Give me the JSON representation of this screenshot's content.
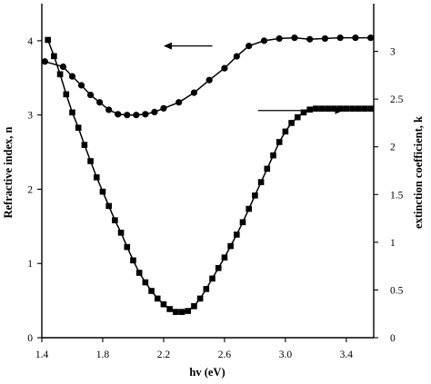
{
  "chart_data": {
    "type": "line",
    "title": "",
    "xlabel": "hv (eV)",
    "ylabel_left": "Refractive index, n",
    "ylabel_right": "extinction coefficient, k",
    "xlim": [
      1.4,
      3.58
    ],
    "ylim_left": [
      0,
      4.5
    ],
    "ylim_right": [
      0,
      3.5
    ],
    "x_ticks": [
      "1.4",
      "1.8",
      "2.2",
      "2.6",
      "3.0",
      "3.4"
    ],
    "y_left_ticks": [
      "0",
      "1",
      "2",
      "3",
      "4"
    ],
    "y_right_ticks": [
      "0",
      "0.5",
      "1",
      "1.5",
      "2",
      "2.5",
      "3"
    ],
    "grid": false,
    "legend": "none",
    "series": [
      {
        "marker": "circle",
        "axis": "left",
        "x": [
          1.42,
          1.54,
          1.6,
          1.66,
          1.72,
          1.78,
          1.84,
          1.9,
          1.96,
          2.02,
          2.08,
          2.14,
          2.2,
          2.3,
          2.4,
          2.5,
          2.6,
          2.68,
          2.76,
          2.86,
          2.96,
          3.06,
          3.16,
          3.26,
          3.36,
          3.46,
          3.56
        ],
        "values": [
          3.72,
          3.65,
          3.52,
          3.4,
          3.27,
          3.17,
          3.07,
          3.01,
          3.0,
          3.0,
          3.01,
          3.04,
          3.09,
          3.17,
          3.3,
          3.47,
          3.63,
          3.79,
          3.93,
          4.0,
          4.03,
          4.04,
          4.02,
          4.03,
          4.04,
          4.04,
          4.04
        ]
      },
      {
        "marker": "square",
        "axis": "right",
        "x": [
          1.44,
          1.48,
          1.52,
          1.56,
          1.6,
          1.64,
          1.68,
          1.72,
          1.76,
          1.8,
          1.84,
          1.88,
          1.92,
          1.96,
          2.0,
          2.04,
          2.08,
          2.12,
          2.16,
          2.2,
          2.24,
          2.28,
          2.32,
          2.36,
          2.4,
          2.44,
          2.48,
          2.52,
          2.56,
          2.6,
          2.64,
          2.68,
          2.72,
          2.76,
          2.8,
          2.84,
          2.88,
          2.92,
          2.96,
          3.0,
          3.04,
          3.08,
          3.12,
          3.16,
          3.2,
          3.24,
          3.28,
          3.32,
          3.36,
          3.4,
          3.44,
          3.48,
          3.52,
          3.56
        ],
        "values": [
          3.12,
          2.95,
          2.76,
          2.55,
          2.36,
          2.2,
          2.02,
          1.85,
          1.68,
          1.53,
          1.38,
          1.23,
          1.1,
          0.95,
          0.81,
          0.68,
          0.58,
          0.49,
          0.41,
          0.35,
          0.3,
          0.27,
          0.27,
          0.28,
          0.33,
          0.41,
          0.51,
          0.62,
          0.73,
          0.84,
          0.96,
          1.08,
          1.21,
          1.35,
          1.49,
          1.63,
          1.77,
          1.91,
          2.05,
          2.16,
          2.25,
          2.31,
          2.36,
          2.39,
          2.4,
          2.4,
          2.4,
          2.4,
          2.4,
          2.4,
          2.4,
          2.4,
          2.4,
          2.4
        ]
      }
    ],
    "annotations": [
      {
        "type": "arrow",
        "direction": "left",
        "points_to_axis": "left",
        "from_x": 2.52,
        "to_x": 2.2,
        "y_left": 3.93
      },
      {
        "type": "arrow",
        "direction": "right",
        "points_to_axis": "right",
        "from_x": 2.82,
        "to_x": 3.38,
        "y_right": 2.38
      }
    ]
  }
}
